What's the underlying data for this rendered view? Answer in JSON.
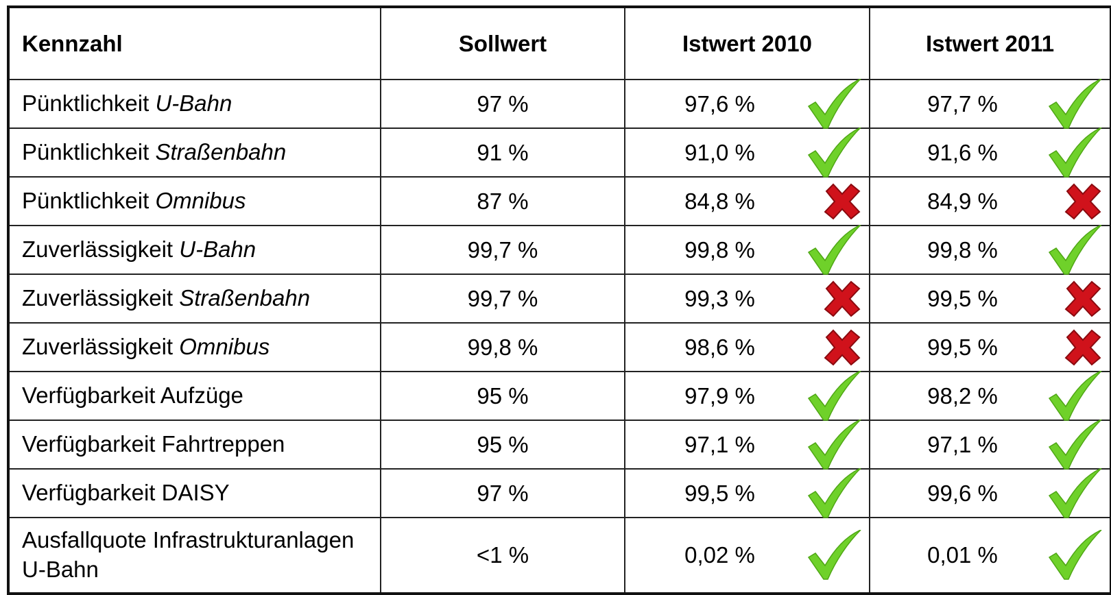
{
  "table": {
    "header": [
      "Kennzahl",
      "Sollwert",
      "Istwert 2010",
      "Istwert 2011"
    ],
    "rows": [
      {
        "label": "Pünktlichkeit",
        "mode": "U-Bahn",
        "target": "97 %",
        "values": [
          {
            "text": "97,6 %",
            "met": true
          },
          {
            "text": "97,7 %",
            "met": true
          }
        ]
      },
      {
        "label": "Pünktlichkeit",
        "mode": "Straßenbahn",
        "target": "91 %",
        "values": [
          {
            "text": "91,0 %",
            "met": true
          },
          {
            "text": "91,6 %",
            "met": true
          }
        ]
      },
      {
        "label": "Pünktlichkeit",
        "mode": "Omnibus",
        "target": "87 %",
        "values": [
          {
            "text": "84,8 %",
            "met": false
          },
          {
            "text": "84,9 %",
            "met": false
          }
        ]
      },
      {
        "label": "Zuverlässigkeit",
        "mode": "U-Bahn",
        "target": "99,7 %",
        "values": [
          {
            "text": "99,8 %",
            "met": true
          },
          {
            "text": "99,8 %",
            "met": true
          }
        ]
      },
      {
        "label": "Zuverlässigkeit",
        "mode": "Straßenbahn",
        "target": "99,7 %",
        "values": [
          {
            "text": "99,3 %",
            "met": false
          },
          {
            "text": "99,5 %",
            "met": false
          }
        ]
      },
      {
        "label": "Zuverlässigkeit",
        "mode": "Omnibus",
        "target": "99,8 %",
        "values": [
          {
            "text": "98,6 %",
            "met": false
          },
          {
            "text": "99,5 %",
            "met": false
          }
        ]
      },
      {
        "label": "Verfügbarkeit Aufzüge",
        "target": "95 %",
        "values": [
          {
            "text": "97,9 %",
            "met": true
          },
          {
            "text": "98,2 %",
            "met": true
          }
        ]
      },
      {
        "label": "Verfügbarkeit Fahrtreppen",
        "target": "95 %",
        "values": [
          {
            "text": "97,1 %",
            "met": true
          },
          {
            "text": "97,1 %",
            "met": true
          }
        ]
      },
      {
        "label": "Verfügbarkeit DAISY",
        "target": "97 %",
        "values": [
          {
            "text": "99,5 %",
            "met": true
          },
          {
            "text": "99,6 %",
            "met": true
          }
        ]
      },
      {
        "label": "Ausfallquote Infrastrukturanlagen U-Bahn",
        "target": "<1 %",
        "values": [
          {
            "text": "0,02 %",
            "met": true
          },
          {
            "text": "0,01 %",
            "met": true
          }
        ]
      }
    ]
  }
}
